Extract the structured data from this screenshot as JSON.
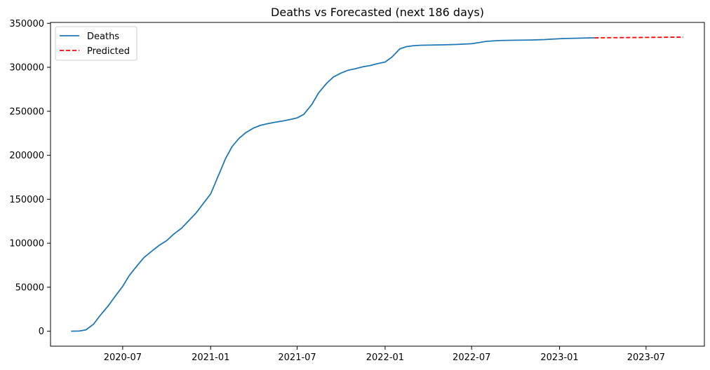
{
  "chart_data": {
    "type": "line",
    "title": "Deaths vs Forecasted (next 186 days)",
    "xlabel": "",
    "ylabel": "",
    "x_type": "date",
    "xlim": [
      "2020-02-01",
      "2023-10-31"
    ],
    "ylim": [
      -17000,
      351000
    ],
    "x_ticks": [
      "2020-07-01",
      "2021-01-01",
      "2021-07-01",
      "2022-01-01",
      "2022-07-01",
      "2023-01-01",
      "2023-07-01"
    ],
    "x_tick_labels": [
      "2020-07",
      "2021-01",
      "2021-07",
      "2022-01",
      "2022-07",
      "2023-01",
      "2023-07"
    ],
    "y_ticks": [
      0,
      50000,
      100000,
      150000,
      200000,
      250000,
      300000,
      350000
    ],
    "y_tick_labels": [
      "0",
      "50000",
      "100000",
      "150000",
      "200000",
      "250000",
      "300000",
      "350000"
    ],
    "grid": false,
    "legend_position": "top-left",
    "series": [
      {
        "name": "Deaths",
        "color": "#1f77b4",
        "style": "solid",
        "x": [
          "2020-03-15",
          "2020-04-01",
          "2020-04-15",
          "2020-05-01",
          "2020-05-15",
          "2020-06-01",
          "2020-06-15",
          "2020-07-01",
          "2020-07-15",
          "2020-08-01",
          "2020-08-15",
          "2020-09-01",
          "2020-09-15",
          "2020-10-01",
          "2020-10-15",
          "2020-11-01",
          "2020-11-15",
          "2020-12-01",
          "2020-12-15",
          "2021-01-01",
          "2021-01-15",
          "2021-02-01",
          "2021-02-15",
          "2021-03-01",
          "2021-03-15",
          "2021-04-01",
          "2021-04-15",
          "2021-05-01",
          "2021-05-15",
          "2021-06-01",
          "2021-06-15",
          "2021-07-01",
          "2021-07-15",
          "2021-08-01",
          "2021-08-15",
          "2021-09-01",
          "2021-09-15",
          "2021-10-01",
          "2021-10-15",
          "2021-11-01",
          "2021-11-15",
          "2021-12-01",
          "2021-12-15",
          "2022-01-01",
          "2022-01-15",
          "2022-02-01",
          "2022-02-15",
          "2022-03-01",
          "2022-03-15",
          "2022-04-01",
          "2022-05-01",
          "2022-06-01",
          "2022-07-01",
          "2022-07-15",
          "2022-08-01",
          "2022-08-15",
          "2022-09-01",
          "2022-10-01",
          "2022-11-01",
          "2022-12-01",
          "2022-12-15",
          "2023-01-01",
          "2023-01-15",
          "2023-02-01",
          "2023-02-15",
          "2023-03-01",
          "2023-03-15"
        ],
        "values": [
          0,
          200,
          1500,
          8000,
          18000,
          29000,
          39500,
          51000,
          63500,
          75000,
          84000,
          91500,
          97500,
          103000,
          110000,
          117000,
          125000,
          134000,
          144000,
          156000,
          174000,
          196000,
          210000,
          219000,
          225500,
          231000,
          234000,
          236000,
          237500,
          239000,
          240500,
          242500,
          246500,
          258000,
          271000,
          282000,
          289000,
          293500,
          296500,
          298500,
          300500,
          302000,
          304000,
          306000,
          311500,
          321000,
          323500,
          324500,
          325000,
          325200,
          325500,
          326000,
          326800,
          328000,
          329500,
          330000,
          330500,
          330800,
          331000,
          331500,
          332000,
          332500,
          332800,
          333000,
          333200,
          333400,
          333500
        ]
      },
      {
        "name": "Predicted",
        "color": "#ff0000",
        "style": "dashed",
        "x": [
          "2023-03-15",
          "2023-05-01",
          "2023-06-15",
          "2023-08-01",
          "2023-09-17"
        ],
        "values": [
          333500,
          333700,
          333900,
          334100,
          334300
        ]
      }
    ]
  }
}
